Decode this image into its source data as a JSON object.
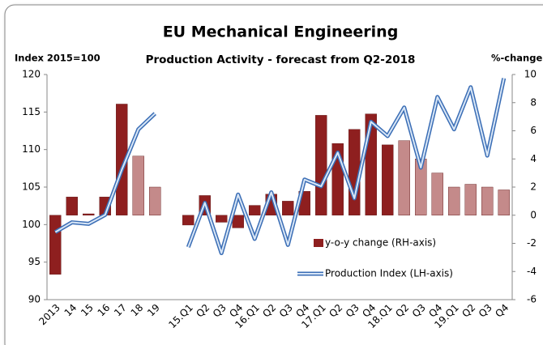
{
  "chart_data": {
    "type": "bar-line",
    "title": "EU Mechanical Engineering",
    "subtitle": "Production Activity - forecast from Q2-2018",
    "y_label": "Index 2015=100",
    "y2_label": "%-change",
    "categories": [
      "2013",
      "14",
      "15",
      "16",
      "17",
      "18",
      "19",
      null,
      "15.Q1",
      "Q2",
      "Q3",
      "Q4",
      "16.Q1",
      "Q2",
      "Q3",
      "Q4",
      "17.Q1",
      "Q2",
      "Q3",
      "Q4",
      "18.Q1",
      "Q2",
      "Q3",
      "Q4",
      "19.Q1",
      "Q2",
      "Q3",
      "Q4"
    ],
    "ylim": [
      90,
      120
    ],
    "yticks": [
      90,
      95,
      100,
      105,
      110,
      115,
      120
    ],
    "y2lim": [
      -6,
      10
    ],
    "y2ticks": [
      -6,
      -4,
      -2,
      0,
      2,
      4,
      6,
      8,
      10
    ],
    "legend": "lower right",
    "series": [
      {
        "name": "y-o-y change (RH-axis)",
        "type": "bar",
        "axis": "y2",
        "color": "#8e1f1f",
        "colors": [
          "#8e1f1f",
          "#8e1f1f",
          "#8e1f1f",
          "#8e1f1f",
          "#8e1f1f",
          "#c48a8a",
          "#c48a8a",
          null,
          "#8e1f1f",
          "#8e1f1f",
          "#8e1f1f",
          "#8e1f1f",
          "#8e1f1f",
          "#8e1f1f",
          "#8e1f1f",
          "#8e1f1f",
          "#8e1f1f",
          "#8e1f1f",
          "#8e1f1f",
          "#8e1f1f",
          "#8e1f1f",
          "#c48a8a",
          "#c48a8a",
          "#c48a8a",
          "#c48a8a",
          "#c48a8a",
          "#c48a8a",
          "#c48a8a"
        ],
        "values": [
          -4.2,
          1.3,
          0.1,
          1.3,
          7.9,
          4.2,
          2.0,
          null,
          -0.7,
          1.4,
          -0.5,
          -0.9,
          0.7,
          1.5,
          1.0,
          1.7,
          7.1,
          5.1,
          6.1,
          7.2,
          5.0,
          5.3,
          4.0,
          3.0,
          2.0,
          2.2,
          2.0,
          1.8
        ]
      },
      {
        "name": "Production Index (LH-axis)",
        "type": "line",
        "axis": "y",
        "color": "#3a6db5",
        "values": [
          99.0,
          100.3,
          100.1,
          101.3,
          107.3,
          112.7,
          114.8,
          null,
          97.0,
          102.9,
          96.2,
          104.0,
          98.1,
          104.3,
          97.3,
          106.0,
          105.1,
          109.6,
          103.5,
          113.7,
          111.8,
          115.6,
          107.6,
          117.0,
          112.7,
          118.3,
          109.2,
          119.5
        ]
      }
    ]
  }
}
